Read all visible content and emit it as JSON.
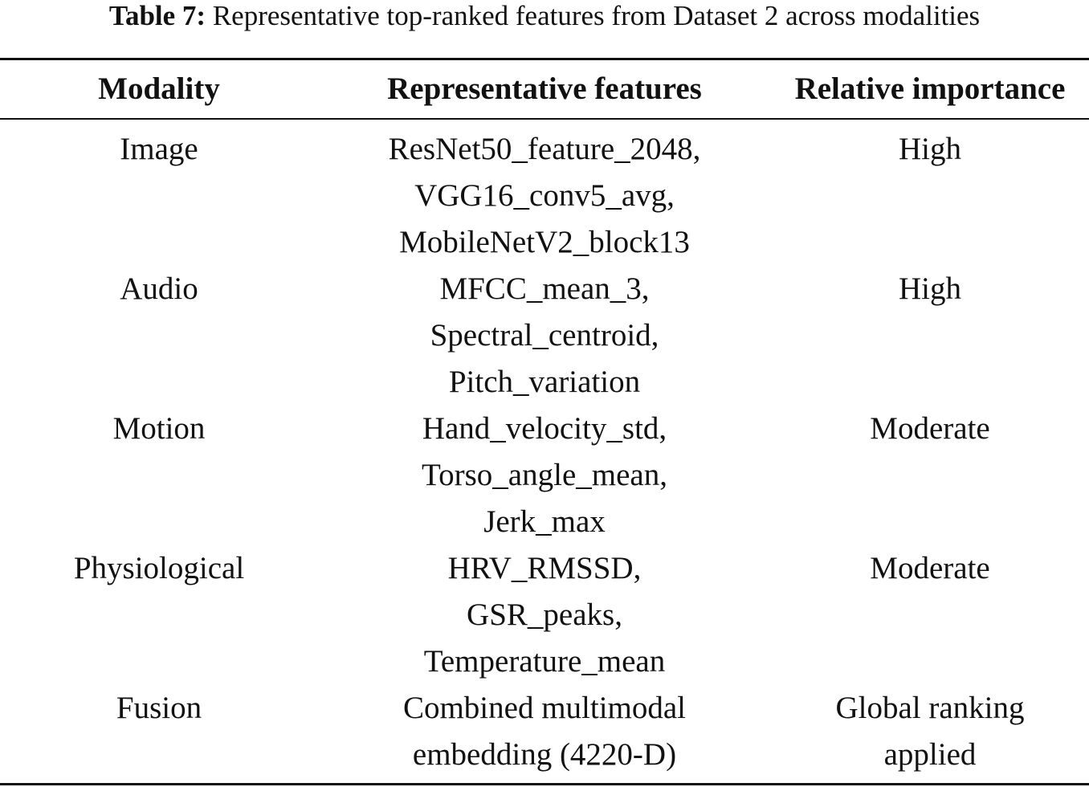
{
  "caption": {
    "label": "Table 7:",
    "text": "Representative top-ranked features from Dataset 2 across modalities"
  },
  "table": {
    "headers": [
      "Modality",
      "Representative features",
      "Relative importance"
    ],
    "rows": [
      {
        "modality": "Image",
        "features": [
          "ResNet50_feature_2048,",
          "VGG16_conv5_avg,",
          "MobileNetV2_block13"
        ],
        "importance": [
          "High"
        ]
      },
      {
        "modality": "Audio",
        "features": [
          "MFCC_mean_3,",
          "Spectral_centroid,",
          "Pitch_variation"
        ],
        "importance": [
          "High"
        ]
      },
      {
        "modality": "Motion",
        "features": [
          "Hand_velocity_std,",
          "Torso_angle_mean,",
          "Jerk_max"
        ],
        "importance": [
          "Moderate"
        ]
      },
      {
        "modality": "Physiological",
        "features": [
          "HRV_RMSSD,",
          "GSR_peaks,",
          "Temperature_mean"
        ],
        "importance": [
          "Moderate"
        ]
      },
      {
        "modality": "Fusion",
        "features": [
          "Combined multimodal",
          "embedding (4220-D)"
        ],
        "importance": [
          "Global ranking",
          "applied"
        ]
      }
    ]
  }
}
